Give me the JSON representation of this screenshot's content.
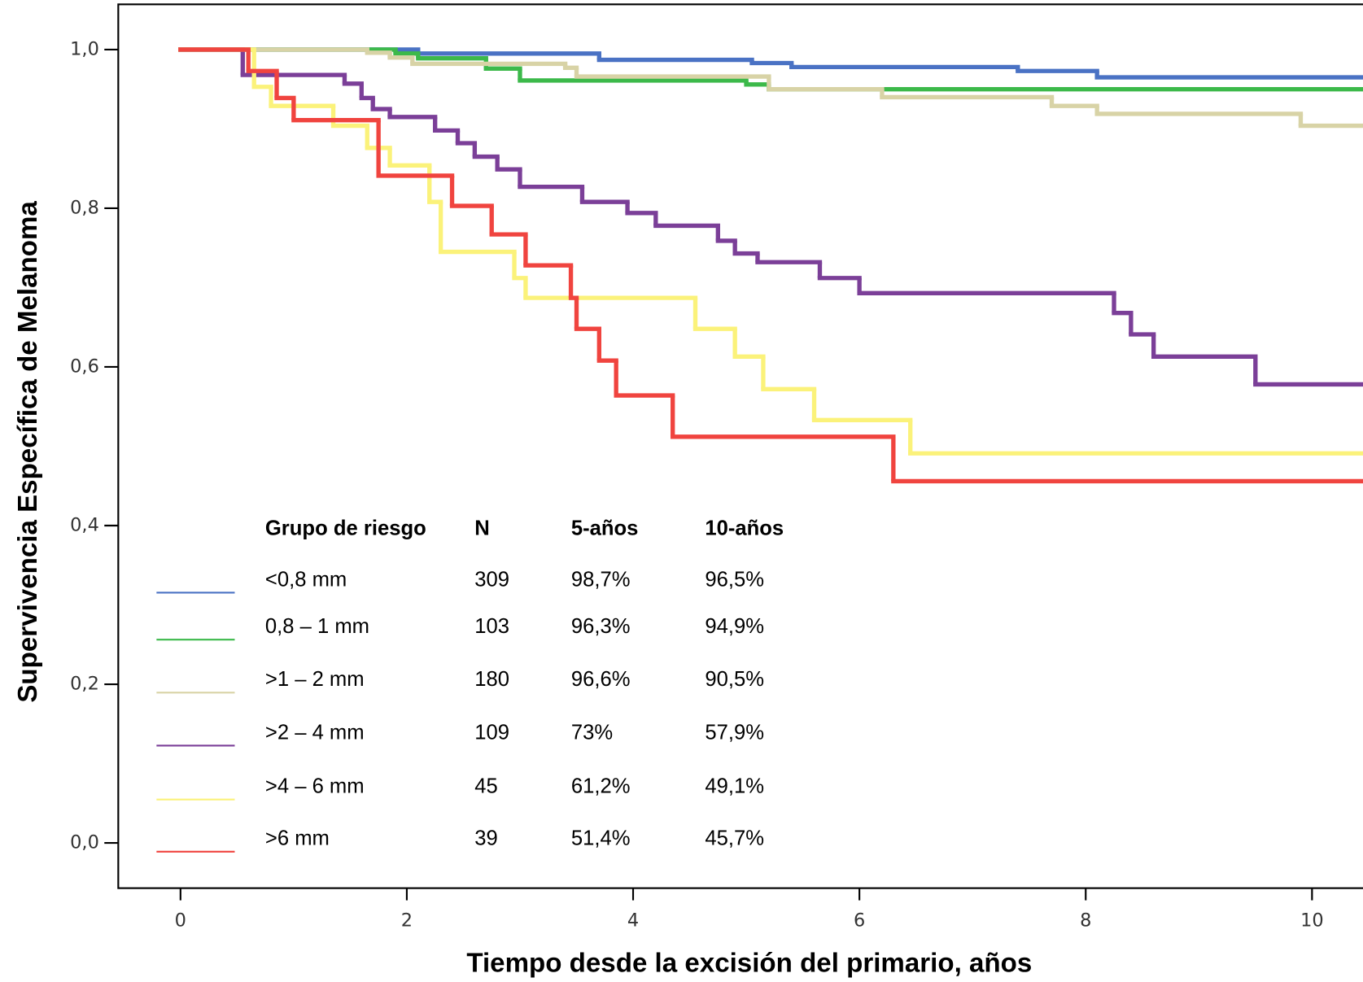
{
  "chart_data": {
    "type": "step",
    "x_label": "Tiempo desde la excisión del primario, años",
    "y_label": "Supervivencia Específica de Melanoma",
    "xlim": [
      -0.55,
      10.45
    ],
    "xticks": [
      0,
      2,
      4,
      6,
      8,
      10
    ],
    "ylim": [
      -0.057,
      1.057
    ],
    "yticks": [
      {
        "value": 0,
        "label": "0,0"
      },
      {
        "value": 0.2,
        "label": "0,2"
      },
      {
        "value": 0.4,
        "label": "0,4"
      },
      {
        "value": 0.6,
        "label": "0,6"
      },
      {
        "value": 0.8,
        "label": "0,8"
      },
      {
        "value": 1,
        "label": "1,0"
      }
    ],
    "series": [
      {
        "name": "<0,8 mm",
        "color": "#4a72c4",
        "x": [
          0,
          2.1,
          3.7,
          5.05,
          5.4,
          7.4,
          8.1,
          10.45
        ],
        "values": [
          1,
          0.995,
          0.987,
          0.983,
          0.978,
          0.973,
          0.965,
          0.965
        ]
      },
      {
        "name": "0,8 – 1 mm",
        "color": "#3cb94a",
        "x": [
          0,
          1.9,
          2.1,
          2.7,
          3.0,
          5.0,
          5.2,
          10.45
        ],
        "values": [
          1,
          0.995,
          0.989,
          0.976,
          0.961,
          0.956,
          0.95,
          0.95
        ]
      },
      {
        "name": ">1 – 2 mm",
        "color": "#d8d3a6",
        "x": [
          0,
          1.65,
          1.85,
          2.05,
          3.4,
          3.5,
          5.2,
          6.2,
          7.7,
          8.1,
          9.9,
          10.45
        ],
        "values": [
          1,
          0.996,
          0.99,
          0.982,
          0.977,
          0.966,
          0.95,
          0.94,
          0.929,
          0.919,
          0.904,
          0.904
        ]
      },
      {
        "name": ">2 – 4 mm",
        "color": "#7b3f98",
        "x": [
          0,
          0.55,
          1.45,
          1.6,
          1.7,
          1.85,
          2.25,
          2.45,
          2.6,
          2.8,
          3.0,
          3.55,
          3.95,
          4.2,
          4.75,
          4.9,
          5.1,
          5.65,
          6.0,
          8.25,
          8.4,
          8.6,
          9.5,
          10.45
        ],
        "values": [
          1,
          0.968,
          0.957,
          0.939,
          0.925,
          0.915,
          0.898,
          0.882,
          0.865,
          0.849,
          0.827,
          0.808,
          0.794,
          0.778,
          0.759,
          0.743,
          0.732,
          0.712,
          0.693,
          0.668,
          0.641,
          0.613,
          0.578,
          0.578
        ]
      },
      {
        "name": ">4 – 6 mm",
        "color": "#fbf27a",
        "x": [
          0,
          0.65,
          0.8,
          1.35,
          1.65,
          1.85,
          2.2,
          2.3,
          2.95,
          3.05,
          4.55,
          4.9,
          5.15,
          5.6,
          6.45,
          10.45
        ],
        "values": [
          1,
          0.953,
          0.929,
          0.904,
          0.876,
          0.854,
          0.808,
          0.745,
          0.712,
          0.687,
          0.648,
          0.613,
          0.572,
          0.533,
          0.491,
          0.491
        ]
      },
      {
        "name": ">6 mm",
        "color": "#f0443f",
        "x": [
          0,
          0.6,
          0.85,
          1.0,
          1.75,
          2.4,
          2.75,
          3.05,
          3.45,
          3.5,
          3.7,
          3.85,
          4.35,
          6.3,
          10.45
        ],
        "values": [
          1,
          0.973,
          0.939,
          0.911,
          0.841,
          0.803,
          0.767,
          0.728,
          0.687,
          0.648,
          0.608,
          0.564,
          0.512,
          0.456,
          0.456
        ]
      }
    ],
    "legend_table": {
      "headers": [
        "Grupo de riesgo",
        "N",
        "5-años",
        "10-años"
      ],
      "rows": [
        [
          309,
          "98,7%",
          "96,5%"
        ],
        [
          103,
          "96,3%",
          "94,9%"
        ],
        [
          180,
          "96,6%",
          "90,5%"
        ],
        [
          109,
          "73%",
          "57,9%"
        ],
        [
          45,
          "61,2%",
          "49,1%"
        ],
        [
          39,
          "51,4%",
          "45,7%"
        ]
      ]
    }
  }
}
